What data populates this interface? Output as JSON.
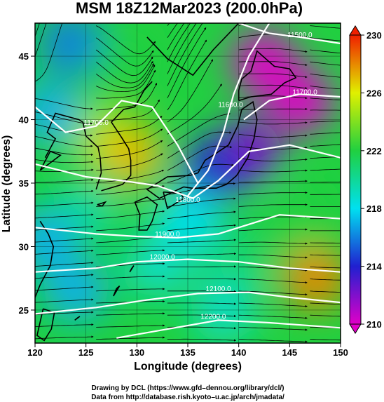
{
  "chart_data": {
    "type": "heatmap",
    "title": "MSM 18Z12Mar2023 (200.0hPa)",
    "xlabel": "Longitude (degrees)",
    "ylabel": "Latitude  (degrees)",
    "xlim": [
      120,
      150
    ],
    "ylim": [
      22.4,
      47.6
    ],
    "x_ticks": [
      "120",
      "125",
      "130",
      "135",
      "140",
      "145",
      "150"
    ],
    "y_ticks": [
      "25",
      "30",
      "35",
      "40",
      "45"
    ],
    "colorbar": {
      "ticks": [
        "210",
        "214",
        "218",
        "222",
        "226",
        "230"
      ],
      "range": [
        210,
        230
      ],
      "colors": [
        "#e000c8",
        "#2020d0",
        "#00e0f0",
        "#20d040",
        "#e0f000",
        "#f02000"
      ]
    },
    "temperature_blobs": [
      {
        "lon": 142.5,
        "lat": 44.5,
        "value": 210
      },
      {
        "lon": 146.0,
        "lat": 41.5,
        "value": 210
      },
      {
        "lon": 141.0,
        "lat": 37.5,
        "value": 212
      },
      {
        "lon": 137.5,
        "lat": 36.0,
        "value": 214
      },
      {
        "lon": 123.5,
        "lat": 46.0,
        "value": 216
      },
      {
        "lon": 121.5,
        "lat": 40.5,
        "value": 217
      },
      {
        "lon": 129.0,
        "lat": 44.5,
        "value": 222
      },
      {
        "lon": 127.0,
        "lat": 38.5,
        "value": 225
      },
      {
        "lon": 129.5,
        "lat": 37.2,
        "value": 227
      },
      {
        "lon": 125.0,
        "lat": 33.0,
        "value": 220
      },
      {
        "lon": 135.0,
        "lat": 32.0,
        "value": 218
      },
      {
        "lon": 132.0,
        "lat": 28.5,
        "value": 219
      },
      {
        "lon": 124.0,
        "lat": 26.5,
        "value": 217
      },
      {
        "lon": 140.0,
        "lat": 29.0,
        "value": 221
      },
      {
        "lon": 147.5,
        "lat": 27.5,
        "value": 228
      },
      {
        "lon": 146.0,
        "lat": 32.0,
        "value": 222
      },
      {
        "lon": 138.5,
        "lat": 25.0,
        "value": 219
      },
      {
        "lon": 121.0,
        "lat": 30.5,
        "value": 217
      }
    ],
    "height_contours": [
      {
        "label": "11600.0",
        "label_lon": 139.2,
        "label_lat": 41.0,
        "path": [
          [
            135.0,
            34.0
          ],
          [
            137.0,
            36.0
          ],
          [
            138.5,
            39.0
          ],
          [
            139.5,
            42.0
          ],
          [
            141.0,
            45.0
          ],
          [
            143.0,
            47.6
          ]
        ]
      },
      {
        "label": "11700.0",
        "label_lon": 126.0,
        "label_lat": 39.6,
        "path": [
          [
            120.0,
            41.0
          ],
          [
            123.0,
            39.0
          ],
          [
            126.0,
            39.5
          ],
          [
            128.5,
            41.5
          ],
          [
            131.5,
            41.0
          ],
          [
            134.0,
            38.0
          ],
          [
            136.0,
            35.0
          ]
        ]
      },
      {
        "label": "11800.0",
        "label_lon": 135.0,
        "label_lat": 33.5,
        "path": [
          [
            120.0,
            36.5
          ],
          [
            125.0,
            35.5
          ],
          [
            128.5,
            35.2
          ],
          [
            132.0,
            34.8
          ],
          [
            135.5,
            33.8
          ],
          [
            138.0,
            35.2
          ],
          [
            141.0,
            37.5
          ],
          [
            145.0,
            38.0
          ],
          [
            150.0,
            37.0
          ]
        ]
      },
      {
        "label": "11900.0",
        "label_lon": 133.0,
        "label_lat": 30.8,
        "path": [
          [
            120.0,
            31.5
          ],
          [
            126.0,
            31.0
          ],
          [
            130.0,
            30.8
          ],
          [
            134.0,
            30.7
          ],
          [
            138.0,
            31.0
          ],
          [
            144.0,
            32.5
          ],
          [
            150.0,
            32.2
          ]
        ]
      },
      {
        "label": "12000.0",
        "label_lon": 132.5,
        "label_lat": 29.0,
        "path": [
          [
            120.0,
            28.0
          ],
          [
            126.0,
            28.3
          ],
          [
            130.0,
            28.8
          ],
          [
            135.0,
            29.0
          ],
          [
            140.0,
            28.8
          ],
          [
            145.0,
            28.3
          ],
          [
            150.0,
            28.0
          ]
        ]
      },
      {
        "label": "12100.0",
        "label_lon": 138.0,
        "label_lat": 26.5,
        "path": [
          [
            120.0,
            24.7
          ],
          [
            126.0,
            25.2
          ],
          [
            131.0,
            25.8
          ],
          [
            136.0,
            26.3
          ],
          [
            141.0,
            26.4
          ],
          [
            145.0,
            26.0
          ],
          [
            150.0,
            25.6
          ]
        ]
      },
      {
        "label": "12200.0",
        "label_lon": 137.5,
        "label_lat": 24.3,
        "path": [
          [
            128.0,
            22.8
          ],
          [
            133.0,
            23.5
          ],
          [
            138.0,
            24.2
          ],
          [
            143.0,
            24.0
          ],
          [
            150.0,
            23.6
          ]
        ]
      },
      {
        "label": "11500.0",
        "label_lon": 146.0,
        "label_lat": 46.5,
        "path": [
          [
            140.0,
            47.6
          ],
          [
            143.0,
            46.8
          ],
          [
            146.0,
            46.5
          ],
          [
            150.0,
            46.0
          ]
        ]
      },
      {
        "label": "11700.0",
        "label_lon": 146.5,
        "label_lat": 42.0,
        "path": [
          [
            140.5,
            40.0
          ],
          [
            143.0,
            41.5
          ],
          [
            146.0,
            42.0
          ],
          [
            150.0,
            41.8
          ]
        ]
      }
    ],
    "coastlines": [
      [
        [
          139.8,
          35.6
        ],
        [
          140.9,
          37.0
        ],
        [
          141.5,
          38.5
        ],
        [
          141.8,
          40.0
        ],
        [
          141.4,
          41.4
        ],
        [
          140.3,
          40.8
        ],
        [
          139.9,
          39.5
        ],
        [
          139.0,
          38.0
        ],
        [
          137.5,
          37.2
        ],
        [
          136.7,
          36.8
        ],
        [
          136.0,
          35.8
        ],
        [
          135.2,
          35.6
        ],
        [
          133.0,
          35.5
        ],
        [
          131.0,
          34.5
        ],
        [
          132.2,
          33.8
        ],
        [
          134.6,
          34.7
        ],
        [
          135.4,
          34.6
        ],
        [
          136.8,
          34.6
        ],
        [
          137.8,
          34.6
        ],
        [
          138.8,
          34.9
        ],
        [
          139.8,
          35.6
        ]
      ],
      [
        [
          140.0,
          41.5
        ],
        [
          141.2,
          41.8
        ],
        [
          143.2,
          42.0
        ],
        [
          144.5,
          42.9
        ],
        [
          145.6,
          43.3
        ],
        [
          145.0,
          44.0
        ],
        [
          143.5,
          44.2
        ],
        [
          141.8,
          45.4
        ],
        [
          141.2,
          43.8
        ],
        [
          140.3,
          43.2
        ],
        [
          140.0,
          42.3
        ],
        [
          140.0,
          41.5
        ]
      ],
      [
        [
          129.8,
          33.5
        ],
        [
          131.0,
          33.9
        ],
        [
          132.0,
          33.3
        ],
        [
          131.5,
          32.0
        ],
        [
          131.0,
          31.3
        ],
        [
          130.2,
          31.3
        ],
        [
          130.3,
          32.5
        ],
        [
          129.8,
          33.5
        ]
      ],
      [
        [
          132.6,
          34.3
        ],
        [
          134.3,
          34.2
        ],
        [
          134.6,
          33.8
        ],
        [
          133.0,
          33.0
        ],
        [
          132.6,
          34.3
        ]
      ],
      [
        [
          126.0,
          34.5
        ],
        [
          126.5,
          35.8
        ],
        [
          126.4,
          37.0
        ],
        [
          126.2,
          37.8
        ],
        [
          125.0,
          38.7
        ],
        [
          124.7,
          39.8
        ],
        [
          124.3,
          40.0
        ],
        [
          122.0,
          40.5
        ],
        [
          121.2,
          39.0
        ],
        [
          122.0,
          38.5
        ],
        [
          121.0,
          37.0
        ]
      ],
      [
        [
          126.5,
          34.4
        ],
        [
          128.6,
          34.9
        ],
        [
          129.4,
          35.6
        ],
        [
          129.4,
          36.8
        ],
        [
          129.2,
          37.7
        ],
        [
          128.5,
          38.6
        ],
        [
          127.5,
          39.8
        ],
        [
          128.7,
          40.8
        ],
        [
          129.8,
          41.0
        ],
        [
          130.7,
          42.3
        ],
        [
          131.5,
          43.0
        ]
      ],
      [
        [
          120.5,
          36.0
        ],
        [
          121.5,
          37.5
        ],
        [
          122.5,
          37.2
        ],
        [
          120.5,
          36.0
        ]
      ],
      [
        [
          120.5,
          32.0
        ],
        [
          121.3,
          31.0
        ],
        [
          121.8,
          30.0
        ],
        [
          121.5,
          28.5
        ],
        [
          120.5,
          27.0
        ],
        [
          120.0,
          26.0
        ]
      ],
      [
        [
          120.8,
          25.1
        ],
        [
          121.9,
          24.8
        ],
        [
          121.6,
          23.5
        ],
        [
          120.9,
          22.6
        ],
        [
          120.2,
          23.0
        ],
        [
          120.8,
          25.1
        ]
      ],
      [
        [
          126.1,
          33.3
        ],
        [
          126.9,
          33.5
        ],
        [
          126.6,
          33.2
        ],
        [
          126.1,
          33.3
        ]
      ],
      [
        [
          128.0,
          26.7
        ],
        [
          128.3,
          26.9
        ],
        [
          127.7,
          26.1
        ],
        [
          128.0,
          26.7
        ]
      ],
      [
        [
          129.5,
          28.3
        ],
        [
          129.7,
          28.5
        ],
        [
          129.3,
          28.0
        ],
        [
          129.5,
          28.3
        ]
      ],
      [
        [
          124.2,
          24.4
        ],
        [
          124.4,
          24.5
        ],
        [
          123.9,
          24.2
        ],
        [
          124.2,
          24.4
        ]
      ],
      [
        [
          131.0,
          46.5
        ],
        [
          133.0,
          44.8
        ],
        [
          135.5,
          43.5
        ],
        [
          137.5,
          45.5
        ],
        [
          140.0,
          47.6
        ]
      ]
    ],
    "wind_field": [
      {
        "lon": 122.0,
        "lat": 46.0,
        "u": 0.4,
        "v": 1.0
      },
      {
        "lon": 127.0,
        "lat": 45.0,
        "u": 0.9,
        "v": -0.6
      },
      {
        "lon": 122.0,
        "lat": 40.0,
        "u": 1.0,
        "v": -0.2
      },
      {
        "lon": 128.0,
        "lat": 40.0,
        "u": 1.0,
        "v": 0.1
      },
      {
        "lon": 133.0,
        "lat": 43.0,
        "u": 0.6,
        "v": 1.0
      },
      {
        "lon": 137.0,
        "lat": 44.0,
        "u": 0.7,
        "v": 1.0
      },
      {
        "lon": 141.0,
        "lat": 44.0,
        "u": 1.0,
        "v": 0.0
      },
      {
        "lon": 146.0,
        "lat": 44.0,
        "u": 1.0,
        "v": -0.1
      },
      {
        "lon": 134.0,
        "lat": 38.0,
        "u": 1.0,
        "v": 0.5
      },
      {
        "lon": 140.0,
        "lat": 38.0,
        "u": 1.0,
        "v": -0.1
      },
      {
        "lon": 146.0,
        "lat": 38.0,
        "u": 1.0,
        "v": 0.05
      },
      {
        "lon": 124.0,
        "lat": 34.0,
        "u": 1.0,
        "v": 0.05
      },
      {
        "lon": 132.0,
        "lat": 33.0,
        "u": 1.0,
        "v": 0.1
      },
      {
        "lon": 140.0,
        "lat": 33.0,
        "u": 1.0,
        "v": 0.05
      },
      {
        "lon": 146.0,
        "lat": 33.0,
        "u": 1.0,
        "v": 0.0
      },
      {
        "lon": 124.0,
        "lat": 28.0,
        "u": 1.0,
        "v": 0.05
      },
      {
        "lon": 134.0,
        "lat": 28.0,
        "u": 1.0,
        "v": 0.0
      },
      {
        "lon": 144.0,
        "lat": 28.0,
        "u": 1.0,
        "v": -0.05
      },
      {
        "lon": 126.0,
        "lat": 24.0,
        "u": 1.0,
        "v": 0.02
      },
      {
        "lon": 140.0,
        "lat": 24.0,
        "u": 1.0,
        "v": -0.03
      }
    ],
    "grid": true
  },
  "credits": {
    "line1": "Drawing by DCL (https://www.gfd–dennou.org/library/dcl/)",
    "line2": "Data from http://database.rish.kyoto–u.ac.jp/arch/jmadata/"
  }
}
